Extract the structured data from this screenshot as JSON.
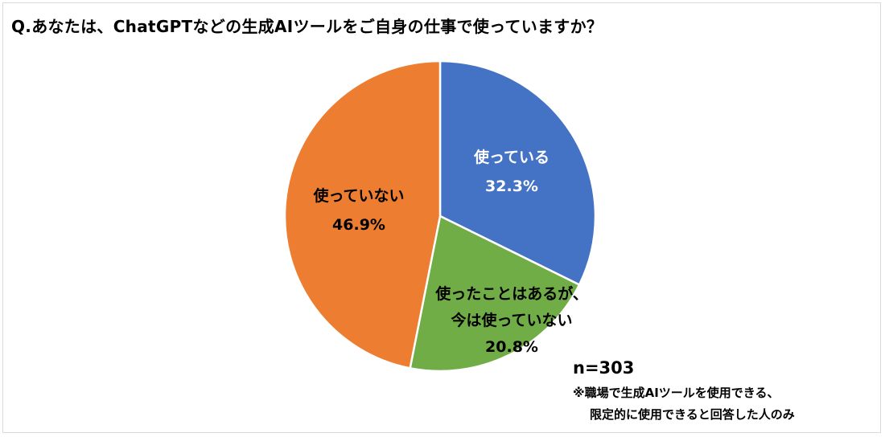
{
  "chart_data": {
    "type": "pie",
    "title": "Q.あなたは、ChatGPTなどの生成AIツールをご自身の仕事で使っていますか？",
    "slices": [
      {
        "label_lines": [
          "使っている"
        ],
        "value": 32.3,
        "value_label": "32.3%",
        "color": "#4472C4",
        "text_color": "#ffffff"
      },
      {
        "label_lines": [
          "使ったことはあるが、",
          "今は使っていない"
        ],
        "value": 20.8,
        "value_label": "20.8%",
        "color": "#70AD47",
        "text_color": "#000000"
      },
      {
        "label_lines": [
          "使っていない"
        ],
        "value": 46.9,
        "value_label": "46.9%",
        "color": "#ED7D31",
        "text_color": "#000000"
      }
    ],
    "start_angle": "12 o'clock",
    "direction": "clockwise"
  },
  "notes": {
    "n": "n=303",
    "line1": "※職場で生成AIツールを使用できる、",
    "line2": "限定的に使用できると回答した人のみ"
  }
}
